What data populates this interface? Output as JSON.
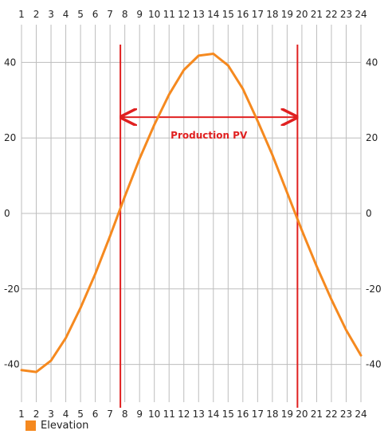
{
  "chart_data": {
    "type": "line",
    "x": [
      1,
      2,
      3,
      4,
      5,
      6,
      7,
      8,
      9,
      10,
      11,
      12,
      13,
      14,
      15,
      16,
      17,
      18,
      19,
      20,
      21,
      22,
      23,
      24
    ],
    "x_tick_labels": [
      "1",
      "2",
      "3",
      "4",
      "5",
      "6",
      "7",
      "8",
      "9",
      "10",
      "11",
      "12",
      "13",
      "14",
      "15",
      "16",
      "17",
      "18",
      "19",
      "20",
      "21",
      "22",
      "23",
      "24"
    ],
    "series": [
      {
        "name": "Elevation",
        "color": "#f5891f",
        "values": [
          -41.5,
          -42.0,
          -39.0,
          -33.0,
          -25.0,
          -16.0,
          -6.0,
          4.5,
          14.5,
          23.5,
          31.5,
          38.0,
          41.8,
          42.3,
          39.2,
          33.0,
          24.5,
          15.5,
          5.5,
          -4.5,
          -14.0,
          -22.8,
          -30.9,
          -37.6
        ]
      }
    ],
    "y_ticks": [
      -40,
      -20,
      0,
      20,
      40
    ],
    "y_tick_labels": [
      "-40",
      "-20",
      "0",
      "20",
      "40"
    ],
    "ylim": [
      -50,
      50
    ],
    "xlim": [
      1,
      24
    ],
    "grid": true,
    "legend_position": "bottom-left",
    "annotations": {
      "vertical_lines": [
        7.7,
        19.7
      ],
      "vertical_line_color": "#e02020",
      "arrow": {
        "from": 7.7,
        "to": 19.7,
        "y": 25.5
      },
      "label": "Production PV"
    }
  }
}
